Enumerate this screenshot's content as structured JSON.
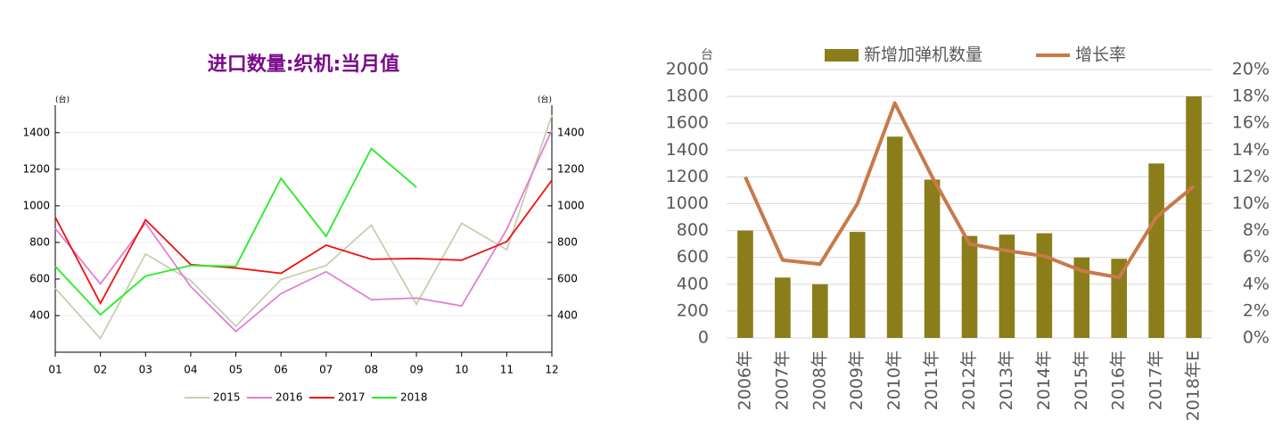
{
  "chart_data": [
    {
      "type": "line",
      "title": "进口数量:织机:当月值",
      "ylabel": "(台)",
      "y2label": "(台)",
      "categories": [
        "01",
        "02",
        "03",
        "04",
        "05",
        "06",
        "07",
        "08",
        "09",
        "10",
        "11",
        "12"
      ],
      "series": [
        {
          "name": "2015",
          "color": "#c8cfb0",
          "values": [
            549,
            275,
            737,
            592,
            342,
            597,
            674,
            895,
            462,
            905,
            760,
            1496
          ]
        },
        {
          "name": "2016",
          "color": "#e080d0",
          "values": [
            876,
            573,
            905,
            559,
            313,
            520,
            640,
            487,
            496,
            453,
            871,
            1414
          ]
        },
        {
          "name": "2017",
          "color": "#ee1111",
          "values": [
            938,
            467,
            924,
            679,
            660,
            631,
            785,
            708,
            712,
            703,
            804,
            1140
          ]
        },
        {
          "name": "2018",
          "color": "#22ee22",
          "values": [
            669,
            405,
            616,
            674,
            669,
            1150,
            833,
            1313,
            1102,
            null,
            null,
            null
          ]
        }
      ],
      "ylim": [
        200,
        1550
      ],
      "yticks": [
        400,
        600,
        800,
        1000,
        1200,
        1400
      ],
      "y2lim": [
        200,
        1550
      ],
      "y2ticks": [
        400,
        600,
        800,
        1000,
        1200,
        1400
      ],
      "grid": true,
      "legend": "bottom"
    },
    {
      "type": "bar",
      "ylabel": "台",
      "categories": [
        "2006年",
        "2007年",
        "2008年",
        "2009年",
        "2010年",
        "2011年",
        "2012年",
        "2013年",
        "2014年",
        "2015年",
        "2016年",
        "2017年",
        "2018年E"
      ],
      "series": [
        {
          "name": "新增加弹机数量",
          "color": "#8b7d1a",
          "values": [
            800,
            450,
            400,
            790,
            1500,
            1180,
            760,
            770,
            780,
            600,
            590,
            1300,
            1800
          ]
        },
        {
          "name": "增长率",
          "type": "line",
          "axis": "y2",
          "color": "#c87a4a",
          "values": [
            12,
            5.8,
            5.5,
            10,
            17.5,
            12,
            7,
            6.5,
            6.1,
            5,
            4.5,
            9,
            11.3
          ]
        }
      ],
      "ylim": [
        0,
        2000
      ],
      "yticks": [
        0,
        200,
        400,
        600,
        800,
        1000,
        1200,
        1400,
        1600,
        1800,
        2000
      ],
      "y2lim": [
        0,
        20
      ],
      "y2ticks": [
        {
          "value": 0,
          "label": "0%"
        },
        {
          "value": 2,
          "label": "2%"
        },
        {
          "value": 4,
          "label": "4%"
        },
        {
          "value": 6,
          "label": "6%"
        },
        {
          "value": 8,
          "label": "8%"
        },
        {
          "value": 10,
          "label": "10%"
        },
        {
          "value": 12,
          "label": "12%"
        },
        {
          "value": 14,
          "label": "14%"
        },
        {
          "value": 16,
          "label": "16%"
        },
        {
          "value": 18,
          "label": "18%"
        },
        {
          "value": 20,
          "label": "20%"
        }
      ],
      "grid": true,
      "legend": "top"
    }
  ]
}
